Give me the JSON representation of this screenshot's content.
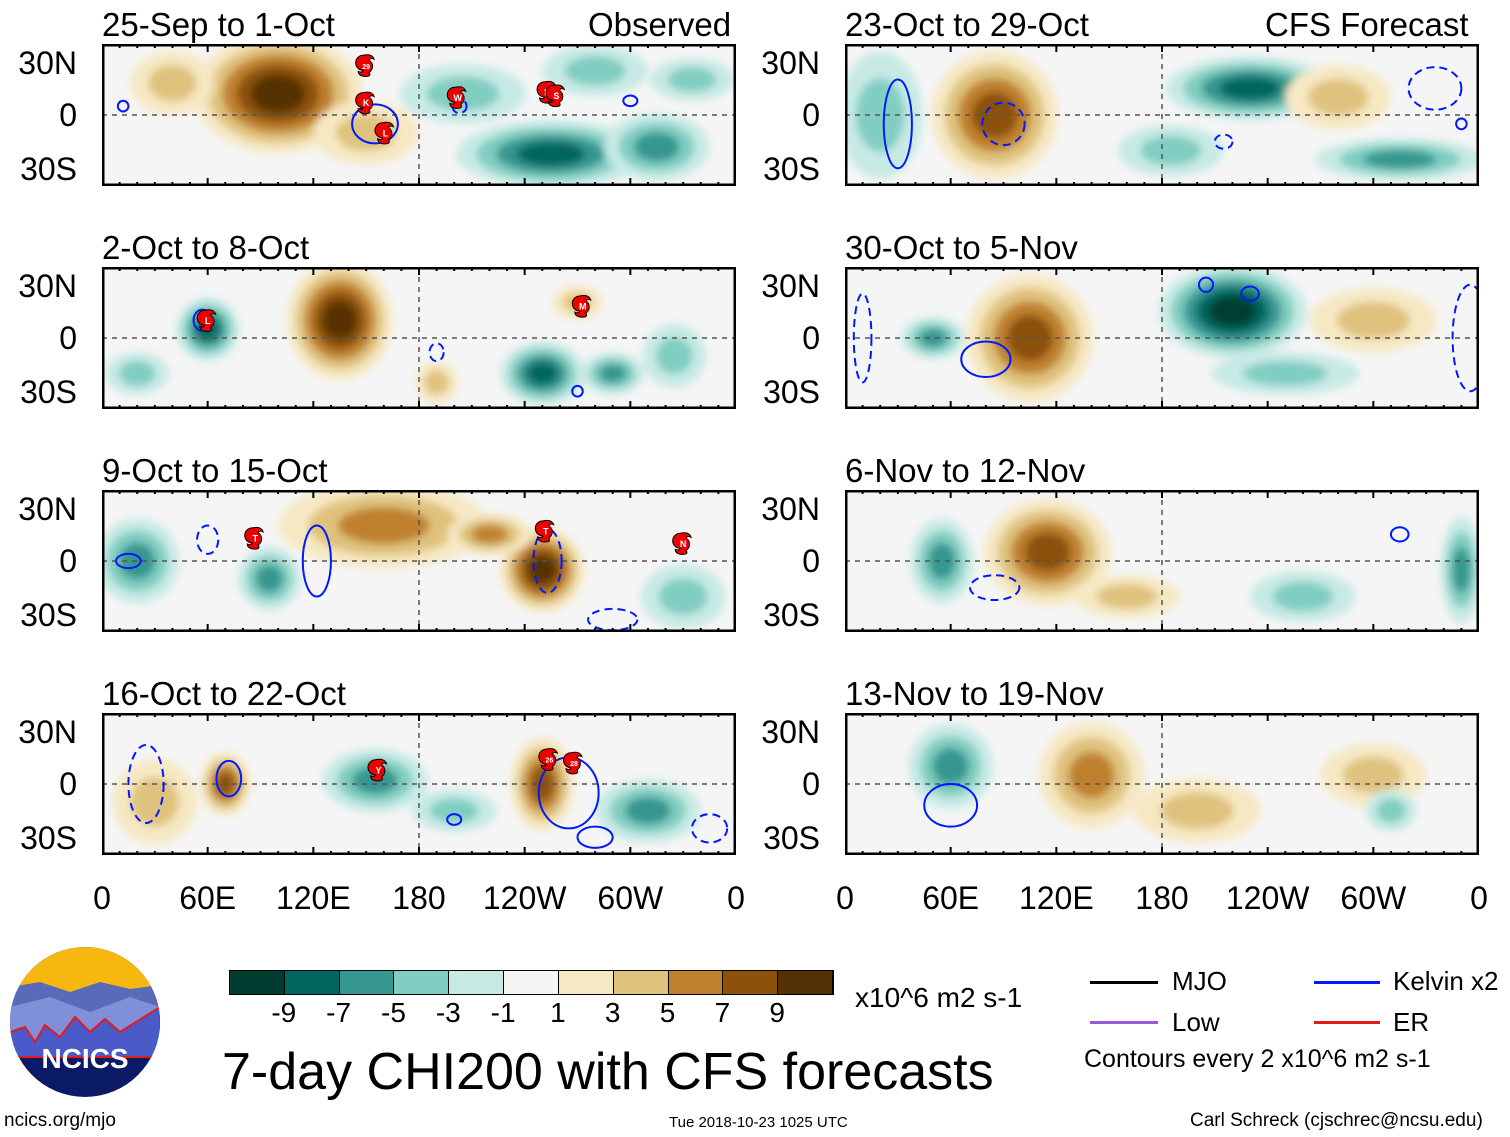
{
  "header": {
    "observed_label": "Observed",
    "forecast_label": "CFS Forecast"
  },
  "y_axis": [
    "30N",
    "0",
    "30S"
  ],
  "x_axis": [
    "0",
    "60E",
    "120E",
    "180",
    "120W",
    "60W",
    "0"
  ],
  "colors": {
    "levels": [
      "#003c30",
      "#01665e",
      "#35978f",
      "#80cdc1",
      "#c7eae5",
      "#f5f5f5",
      "#f6e8c3",
      "#dfc27d",
      "#bf812d",
      "#8c510a",
      "#543005"
    ],
    "kelvin": "#0019ff",
    "mjo": "#000000",
    "low": "#9b59d6",
    "er": "#e41a1c"
  },
  "panels": [
    {
      "title": "25-Sep to 1-Oct",
      "blobs": [
        [
          100,
          12,
          40,
          28,
          9
        ],
        [
          40,
          18,
          20,
          15,
          3
        ],
        [
          150,
          -10,
          25,
          15,
          3
        ],
        [
          255,
          -22,
          45,
          16,
          -7
        ],
        [
          205,
          12,
          30,
          14,
          -3
        ],
        [
          315,
          -18,
          25,
          16,
          -5
        ],
        [
          280,
          25,
          25,
          12,
          -3
        ],
        [
          335,
          20,
          20,
          10,
          -3
        ]
      ],
      "contours": [
        [
          155,
          -5,
          13,
          11,
          1
        ],
        [
          203,
          5,
          4,
          4,
          0
        ],
        [
          300,
          8,
          4,
          3,
          1
        ],
        [
          12,
          5,
          3,
          3,
          1
        ]
      ],
      "storms": [
        [
          "29",
          150,
          28
        ],
        [
          "K",
          150,
          7
        ],
        [
          "L",
          161,
          -10
        ],
        [
          "W",
          202,
          10
        ],
        [
          "R",
          253,
          13
        ],
        [
          "S",
          258,
          11
        ]
      ]
    },
    {
      "title": "2-Oct to 8-Oct",
      "blobs": [
        [
          135,
          10,
          25,
          28,
          9
        ],
        [
          60,
          5,
          15,
          15,
          -7
        ],
        [
          250,
          -20,
          20,
          15,
          -7
        ],
        [
          290,
          -20,
          15,
          10,
          -5
        ],
        [
          190,
          -25,
          10,
          10,
          3
        ],
        [
          270,
          20,
          12,
          8,
          3
        ],
        [
          20,
          -20,
          15,
          10,
          -3
        ],
        [
          325,
          -10,
          15,
          15,
          -3
        ]
      ],
      "contours": [
        [
          57,
          10,
          5,
          6,
          1
        ],
        [
          190,
          -8,
          4,
          5,
          0
        ],
        [
          270,
          -30,
          3,
          3,
          1
        ]
      ],
      "storms": [
        [
          "L",
          60,
          10
        ],
        [
          "M",
          273,
          18
        ]
      ]
    },
    {
      "title": "9-Oct to 15-Oct",
      "blobs": [
        [
          250,
          -5,
          20,
          20,
          9
        ],
        [
          160,
          20,
          50,
          20,
          5
        ],
        [
          95,
          -10,
          15,
          15,
          -5
        ],
        [
          20,
          0,
          20,
          20,
          -5
        ],
        [
          330,
          -20,
          20,
          15,
          -3
        ],
        [
          220,
          15,
          20,
          10,
          5
        ]
      ],
      "contours": [
        [
          122,
          0,
          8,
          20,
          1
        ],
        [
          60,
          12,
          6,
          8,
          0
        ],
        [
          15,
          0,
          7,
          4,
          1
        ],
        [
          253,
          0,
          8,
          18,
          0
        ],
        [
          290,
          -33,
          14,
          6,
          0
        ]
      ],
      "storms": [
        [
          "T",
          87,
          13
        ],
        [
          "T",
          252,
          17
        ],
        [
          "N",
          330,
          10
        ]
      ]
    },
    {
      "title": "16-Oct to 22-Oct",
      "blobs": [
        [
          70,
          0,
          12,
          15,
          7
        ],
        [
          250,
          0,
          15,
          22,
          7
        ],
        [
          155,
          2,
          25,
          15,
          -5
        ],
        [
          310,
          -15,
          25,
          15,
          -5
        ],
        [
          30,
          -10,
          20,
          20,
          3
        ],
        [
          200,
          -15,
          20,
          10,
          -3
        ]
      ],
      "contours": [
        [
          72,
          3,
          7,
          10,
          1
        ],
        [
          265,
          -5,
          17,
          20,
          1
        ],
        [
          280,
          -30,
          10,
          6,
          1
        ],
        [
          200,
          -20,
          4,
          3,
          1
        ],
        [
          25,
          0,
          10,
          22,
          0
        ],
        [
          345,
          -25,
          10,
          8,
          0
        ]
      ],
      "storms": [
        [
          "Y",
          157,
          8
        ],
        [
          "26",
          254,
          14
        ],
        [
          "28",
          268,
          12
        ]
      ]
    },
    {
      "title": "23-Oct to 29-Oct",
      "blobs": [
        [
          85,
          0,
          30,
          30,
          7
        ],
        [
          230,
          15,
          40,
          15,
          -7
        ],
        [
          315,
          -25,
          40,
          10,
          -5
        ],
        [
          280,
          10,
          25,
          15,
          3
        ],
        [
          185,
          -20,
          25,
          12,
          -3
        ],
        [
          20,
          0,
          20,
          30,
          -3
        ]
      ],
      "contours": [
        [
          30,
          -5,
          8,
          25,
          1
        ],
        [
          90,
          -5,
          12,
          12,
          0
        ],
        [
          215,
          -15,
          5,
          4,
          0
        ],
        [
          350,
          -5,
          3,
          3,
          1
        ],
        [
          335,
          15,
          15,
          12,
          0
        ]
      ],
      "storms": []
    },
    {
      "title": "30-Oct to 5-Nov",
      "blobs": [
        [
          105,
          0,
          30,
          30,
          7
        ],
        [
          220,
          15,
          35,
          22,
          -9
        ],
        [
          50,
          0,
          15,
          10,
          -5
        ],
        [
          300,
          10,
          30,
          15,
          3
        ],
        [
          250,
          -20,
          35,
          10,
          -3
        ]
      ],
      "contours": [
        [
          80,
          -12,
          14,
          10,
          1
        ],
        [
          355,
          0,
          10,
          30,
          0
        ],
        [
          205,
          30,
          4,
          4,
          1
        ],
        [
          230,
          25,
          5,
          4,
          1
        ],
        [
          10,
          0,
          5,
          25,
          0
        ]
      ],
      "storms": []
    },
    {
      "title": "6-Nov to 12-Nov",
      "blobs": [
        [
          115,
          5,
          30,
          25,
          7
        ],
        [
          55,
          0,
          15,
          20,
          -5
        ],
        [
          160,
          -20,
          25,
          10,
          3
        ],
        [
          350,
          -5,
          10,
          25,
          -5
        ],
        [
          260,
          -20,
          25,
          12,
          -3
        ]
      ],
      "contours": [
        [
          85,
          -15,
          14,
          7,
          0
        ],
        [
          315,
          15,
          5,
          4,
          1
        ]
      ],
      "storms": []
    },
    {
      "title": "13-Nov to 19-Nov",
      "blobs": [
        [
          140,
          5,
          25,
          25,
          5
        ],
        [
          60,
          10,
          20,
          20,
          -5
        ],
        [
          300,
          5,
          25,
          15,
          3
        ],
        [
          310,
          -15,
          12,
          10,
          -3
        ],
        [
          200,
          -15,
          30,
          15,
          3
        ]
      ],
      "contours": [
        [
          60,
          -12,
          15,
          12,
          1
        ]
      ],
      "storms": []
    }
  ],
  "colorbar": {
    "labels": [
      "-9",
      "-7",
      "-5",
      "-3",
      "-1",
      "1",
      "3",
      "5",
      "7",
      "9"
    ],
    "units": "x10^6 m2 s-1"
  },
  "legend": {
    "mjo": "MJO",
    "kelvin": "Kelvin x2",
    "low": "Low",
    "er": "ER",
    "contours": "Contours every 2 x10^6 m2 s-1"
  },
  "title": "7-day CHI200 with CFS forecasts",
  "logo": "NCICS",
  "footer": {
    "url": "ncics.org/mjo",
    "timestamp": "Tue 2018-10-23 1025 UTC",
    "author": "Carl Schreck (cjschrec@ncsu.edu)"
  }
}
